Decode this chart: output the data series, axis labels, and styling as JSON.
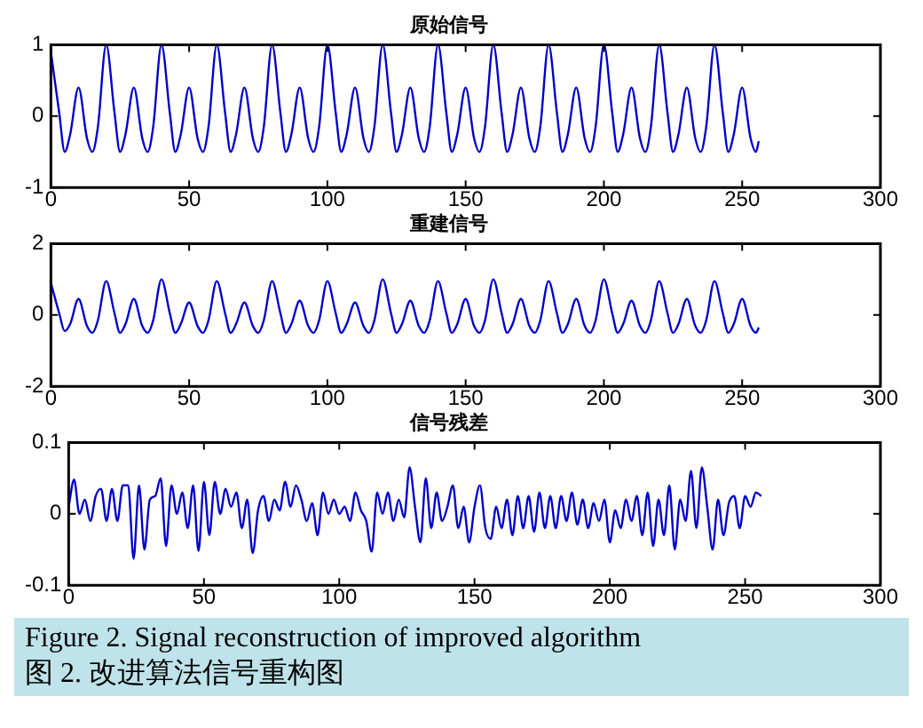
{
  "chart_data": [
    {
      "type": "line",
      "title": "原始信号",
      "xlim": [
        0,
        300
      ],
      "xticks": [
        0,
        50,
        100,
        150,
        200,
        250,
        300
      ],
      "ylim": [
        -1,
        1
      ],
      "yticks": [
        -1,
        0,
        1
      ],
      "grid": false,
      "legend": false,
      "marker": "none",
      "line_style": "solid",
      "x": [
        0,
        3,
        5,
        7,
        10,
        13,
        15,
        17,
        20,
        23,
        25,
        27,
        30,
        33,
        35,
        37,
        40,
        43,
        45,
        47,
        50,
        53,
        55,
        57,
        60,
        63,
        65,
        67,
        70,
        73,
        75,
        77,
        80,
        83,
        85,
        87,
        90,
        93,
        95,
        97,
        100,
        103,
        105,
        107,
        110,
        113,
        115,
        117,
        120,
        123,
        125,
        127,
        130,
        133,
        135,
        137,
        140,
        143,
        145,
        147,
        150,
        153,
        155,
        157,
        160,
        163,
        165,
        167,
        170,
        173,
        175,
        177,
        180,
        183,
        185,
        187,
        190,
        193,
        195,
        197,
        200,
        203,
        205,
        207,
        210,
        213,
        215,
        217,
        220,
        223,
        225,
        227,
        230,
        233,
        235,
        237,
        240,
        243,
        245,
        247,
        250,
        253,
        255,
        256
      ],
      "series": [
        {
          "color": "#0000cc",
          "values": [
            0.9,
            0.05,
            -0.5,
            -0.25,
            0.4,
            -0.3,
            -0.5,
            -0.15,
            1,
            0.05,
            -0.5,
            -0.25,
            0.4,
            -0.3,
            -0.5,
            -0.15,
            1,
            0.05,
            -0.5,
            -0.25,
            0.4,
            -0.3,
            -0.5,
            -0.15,
            1,
            0.05,
            -0.5,
            -0.25,
            0.4,
            -0.3,
            -0.5,
            -0.15,
            1,
            0.05,
            -0.5,
            -0.25,
            0.4,
            -0.3,
            -0.5,
            -0.15,
            1,
            0.05,
            -0.5,
            -0.25,
            0.4,
            -0.3,
            -0.5,
            -0.15,
            1,
            0.05,
            -0.5,
            -0.25,
            0.4,
            -0.3,
            -0.5,
            -0.15,
            1,
            0.05,
            -0.5,
            -0.25,
            0.4,
            -0.3,
            -0.5,
            -0.15,
            1,
            0.05,
            -0.5,
            -0.25,
            0.4,
            -0.3,
            -0.5,
            -0.15,
            1,
            0.05,
            -0.5,
            -0.25,
            0.4,
            -0.3,
            -0.5,
            -0.15,
            1,
            0.05,
            -0.5,
            -0.25,
            0.4,
            -0.3,
            -0.5,
            -0.15,
            1,
            0.05,
            -0.5,
            -0.25,
            0.4,
            -0.3,
            -0.5,
            -0.15,
            1,
            0.05,
            -0.5,
            -0.25,
            0.4,
            -0.3,
            -0.5,
            -0.35
          ]
        }
      ]
    },
    {
      "type": "line",
      "title": "重建信号",
      "xlim": [
        0,
        300
      ],
      "xticks": [
        0,
        50,
        100,
        150,
        200,
        250,
        300
      ],
      "ylim": [
        -2,
        2
      ],
      "yticks": [
        -2,
        0,
        2
      ],
      "grid": false,
      "legend": false,
      "marker": "none",
      "line_style": "solid",
      "x": [
        0,
        3,
        5,
        7,
        10,
        13,
        15,
        17,
        20,
        23,
        25,
        27,
        30,
        33,
        35,
        37,
        40,
        43,
        45,
        47,
        50,
        53,
        55,
        57,
        60,
        63,
        65,
        67,
        70,
        73,
        75,
        77,
        80,
        83,
        85,
        87,
        90,
        93,
        95,
        97,
        100,
        103,
        105,
        107,
        110,
        113,
        115,
        117,
        120,
        123,
        125,
        127,
        130,
        133,
        135,
        137,
        140,
        143,
        145,
        147,
        150,
        153,
        155,
        157,
        160,
        163,
        165,
        167,
        170,
        173,
        175,
        177,
        180,
        183,
        185,
        187,
        190,
        193,
        195,
        197,
        200,
        203,
        205,
        207,
        210,
        213,
        215,
        217,
        220,
        223,
        225,
        227,
        230,
        233,
        235,
        237,
        240,
        243,
        245,
        247,
        250,
        253,
        255,
        256
      ],
      "series": [
        {
          "color": "#0000cc",
          "values": [
            0.9,
            0.05,
            -0.45,
            -0.25,
            0.45,
            -0.3,
            -0.5,
            -0.15,
            0.95,
            0.05,
            -0.5,
            -0.25,
            0.45,
            -0.3,
            -0.5,
            -0.15,
            1,
            0.05,
            -0.5,
            -0.25,
            0.35,
            -0.3,
            -0.5,
            -0.15,
            0.95,
            0.05,
            -0.5,
            -0.25,
            0.35,
            -0.3,
            -0.5,
            -0.15,
            0.95,
            0.05,
            -0.5,
            -0.25,
            0.4,
            -0.3,
            -0.5,
            -0.15,
            0.95,
            0.05,
            -0.5,
            -0.25,
            0.35,
            -0.3,
            -0.5,
            -0.15,
            1,
            0.05,
            -0.5,
            -0.25,
            0.4,
            -0.3,
            -0.5,
            -0.15,
            0.95,
            0.05,
            -0.5,
            -0.25,
            0.45,
            -0.3,
            -0.5,
            -0.15,
            1,
            0.05,
            -0.5,
            -0.25,
            0.45,
            -0.3,
            -0.5,
            -0.15,
            0.95,
            0.05,
            -0.5,
            -0.25,
            0.45,
            -0.3,
            -0.5,
            -0.15,
            1,
            0.05,
            -0.5,
            -0.25,
            0.4,
            -0.3,
            -0.5,
            -0.15,
            0.95,
            0.05,
            -0.5,
            -0.25,
            0.45,
            -0.3,
            -0.5,
            -0.15,
            0.95,
            0.05,
            -0.5,
            -0.25,
            0.45,
            -0.3,
            -0.5,
            -0.35
          ]
        }
      ]
    },
    {
      "type": "line",
      "title": "信号残差",
      "xlim": [
        0,
        300
      ],
      "xticks": [
        0,
        50,
        100,
        150,
        200,
        250,
        300
      ],
      "ylim": [
        -0.1,
        0.1
      ],
      "yticks": [
        -0.1,
        0,
        0.1
      ],
      "grid": false,
      "legend": false,
      "marker": "none",
      "line_style": "solid",
      "x": [
        0,
        2,
        4,
        6,
        8,
        10,
        12,
        14,
        16,
        18,
        20,
        22,
        24,
        26,
        28,
        30,
        32,
        34,
        36,
        38,
        40,
        42,
        44,
        46,
        48,
        50,
        52,
        54,
        56,
        58,
        60,
        62,
        64,
        66,
        68,
        70,
        72,
        74,
        76,
        78,
        80,
        82,
        84,
        86,
        88,
        90,
        92,
        94,
        96,
        98,
        100,
        102,
        104,
        106,
        108,
        110,
        112,
        114,
        116,
        118,
        120,
        122,
        124,
        126,
        128,
        130,
        132,
        134,
        136,
        138,
        140,
        142,
        144,
        146,
        148,
        150,
        152,
        154,
        156,
        158,
        160,
        162,
        164,
        166,
        168,
        170,
        172,
        174,
        176,
        178,
        180,
        182,
        184,
        186,
        188,
        190,
        192,
        194,
        196,
        198,
        200,
        202,
        204,
        206,
        208,
        210,
        212,
        214,
        216,
        218,
        220,
        222,
        224,
        226,
        228,
        230,
        232,
        234,
        236,
        238,
        240,
        242,
        244,
        246,
        248,
        250,
        252,
        254,
        256
      ],
      "series": [
        {
          "color": "#0000cc",
          "values": [
            0.01,
            0.048,
            0,
            0.02,
            -0.01,
            0.025,
            0.035,
            -0.01,
            0.035,
            -0.01,
            0.04,
            0.04,
            -0.063,
            0.04,
            -0.05,
            0.02,
            0.025,
            0.05,
            -0.045,
            0.04,
            0,
            0.03,
            -0.02,
            0.04,
            -0.052,
            0.045,
            -0.03,
            0.045,
            0,
            0.035,
            0.01,
            0.03,
            -0.02,
            0.02,
            -0.055,
            0.005,
            0.025,
            -0.01,
            0.02,
            0.005,
            0.045,
            0.01,
            0.04,
            0.02,
            -0.01,
            0.015,
            -0.03,
            0.03,
            0,
            0.02,
            0,
            0.01,
            -0.01,
            0.03,
            0.005,
            -0.01,
            -0.053,
            0.03,
            0,
            0.03,
            -0.01,
            0.02,
            -0.005,
            0.065,
            0.01,
            -0.04,
            0.05,
            -0.02,
            0.03,
            -0.01,
            0.01,
            0.04,
            -0.02,
            0.01,
            -0.04,
            0.01,
            0.04,
            -0.02,
            -0.035,
            0.01,
            -0.02,
            0.02,
            -0.03,
            0.025,
            -0.02,
            0.025,
            -0.025,
            0.03,
            -0.02,
            0.025,
            -0.02,
            0.025,
            -0.01,
            0.03,
            -0.015,
            0.02,
            -0.02,
            0.015,
            -0.01,
            0.02,
            -0.04,
            0.005,
            -0.02,
            0.02,
            -0.01,
            0.025,
            -0.03,
            0.03,
            -0.045,
            0.02,
            -0.03,
            0.04,
            -0.05,
            0.02,
            -0.01,
            0.06,
            -0.02,
            0.065,
            0.01,
            -0.05,
            0.02,
            -0.03,
            0.015,
            0.025,
            -0.02,
            0.025,
            0.01,
            0.03,
            0.025
          ]
        }
      ],
      "annotations": [
        "Figure 2. Signal reconstruction of improved algorithm",
        "图 2. 改进算法信号重构图"
      ]
    }
  ]
}
